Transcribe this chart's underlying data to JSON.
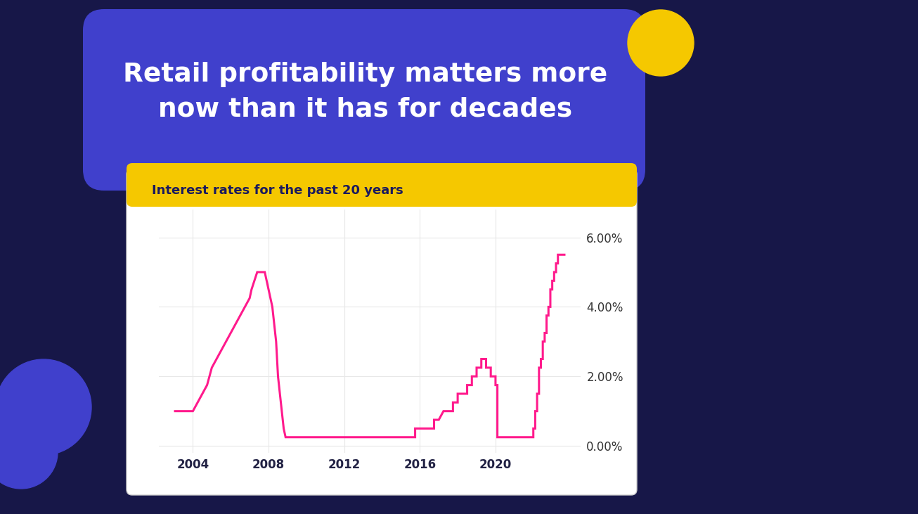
{
  "title_line1": "Retail profitability matters more",
  "title_line2": "now than it has for decades",
  "chart_subtitle": "Interest rates for the past 20 years",
  "background_color": "#171748",
  "title_box_color": "#4040cc",
  "title_text_color": "#ffffff",
  "chart_bg_color": "#ffffff",
  "chart_border_color": "#cccccc",
  "chart_top_bar_color": "#f5c800",
  "line_color": "#ff1a8c",
  "subtitle_color": "#1a1a5e",
  "grid_color": "#e8e8e8",
  "yellow_circle_color": "#f5c800",
  "blue_shape_color": "#4040cc",
  "x_ticks": [
    2004,
    2008,
    2012,
    2016,
    2020
  ],
  "y_ticks": [
    0.0,
    2.0,
    4.0,
    6.0
  ],
  "y_tick_labels": [
    "0.00%",
    "2.00%",
    "4.00%",
    "6.00%"
  ],
  "ylim": [
    -0.2,
    6.8
  ],
  "xlim": [
    2002.2,
    2024.5
  ],
  "interest_rates": [
    [
      2003.0,
      1.0
    ],
    [
      2003.25,
      1.0
    ],
    [
      2003.5,
      1.0
    ],
    [
      2003.75,
      1.0
    ],
    [
      2004.0,
      1.0
    ],
    [
      2004.0,
      1.0
    ],
    [
      2004.25,
      1.25
    ],
    [
      2004.25,
      1.25
    ],
    [
      2004.5,
      1.5
    ],
    [
      2004.5,
      1.5
    ],
    [
      2004.75,
      1.75
    ],
    [
      2004.75,
      1.75
    ],
    [
      2005.0,
      2.25
    ],
    [
      2005.0,
      2.25
    ],
    [
      2005.25,
      2.5
    ],
    [
      2005.25,
      2.5
    ],
    [
      2005.5,
      2.75
    ],
    [
      2005.5,
      2.75
    ],
    [
      2005.75,
      3.0
    ],
    [
      2005.75,
      3.0
    ],
    [
      2006.0,
      3.25
    ],
    [
      2006.0,
      3.25
    ],
    [
      2006.25,
      3.5
    ],
    [
      2006.25,
      3.5
    ],
    [
      2006.5,
      3.75
    ],
    [
      2006.5,
      3.75
    ],
    [
      2006.75,
      4.0
    ],
    [
      2006.75,
      4.0
    ],
    [
      2007.0,
      4.25
    ],
    [
      2007.0,
      4.25
    ],
    [
      2007.1,
      4.5
    ],
    [
      2007.1,
      4.5
    ],
    [
      2007.25,
      4.75
    ],
    [
      2007.25,
      4.75
    ],
    [
      2007.4,
      5.0
    ],
    [
      2007.5,
      5.0
    ],
    [
      2007.6,
      5.0
    ],
    [
      2007.7,
      5.0
    ],
    [
      2007.8,
      5.0
    ],
    [
      2007.8,
      5.0
    ],
    [
      2007.9,
      4.75
    ],
    [
      2007.9,
      4.75
    ],
    [
      2008.0,
      4.5
    ],
    [
      2008.0,
      4.5
    ],
    [
      2008.1,
      4.25
    ],
    [
      2008.1,
      4.25
    ],
    [
      2008.2,
      4.0
    ],
    [
      2008.2,
      4.0
    ],
    [
      2008.3,
      3.5
    ],
    [
      2008.3,
      3.5
    ],
    [
      2008.4,
      3.0
    ],
    [
      2008.4,
      3.0
    ],
    [
      2008.5,
      2.0
    ],
    [
      2008.5,
      2.0
    ],
    [
      2008.6,
      1.5
    ],
    [
      2008.6,
      1.5
    ],
    [
      2008.7,
      1.0
    ],
    [
      2008.7,
      1.0
    ],
    [
      2008.8,
      0.5
    ],
    [
      2008.8,
      0.5
    ],
    [
      2008.9,
      0.25
    ],
    [
      2009.0,
      0.25
    ],
    [
      2009.5,
      0.25
    ],
    [
      2010.0,
      0.25
    ],
    [
      2010.5,
      0.25
    ],
    [
      2011.0,
      0.25
    ],
    [
      2011.5,
      0.25
    ],
    [
      2012.0,
      0.25
    ],
    [
      2012.5,
      0.25
    ],
    [
      2013.0,
      0.25
    ],
    [
      2013.5,
      0.25
    ],
    [
      2014.0,
      0.25
    ],
    [
      2014.5,
      0.25
    ],
    [
      2015.0,
      0.25
    ],
    [
      2015.5,
      0.25
    ],
    [
      2015.75,
      0.25
    ],
    [
      2015.75,
      0.5
    ],
    [
      2016.0,
      0.5
    ],
    [
      2016.25,
      0.5
    ],
    [
      2016.25,
      0.5
    ],
    [
      2016.5,
      0.5
    ],
    [
      2016.75,
      0.5
    ],
    [
      2016.75,
      0.75
    ],
    [
      2017.0,
      0.75
    ],
    [
      2017.0,
      0.75
    ],
    [
      2017.25,
      1.0
    ],
    [
      2017.25,
      1.0
    ],
    [
      2017.5,
      1.0
    ],
    [
      2017.75,
      1.0
    ],
    [
      2017.75,
      1.25
    ],
    [
      2018.0,
      1.25
    ],
    [
      2018.0,
      1.5
    ],
    [
      2018.25,
      1.5
    ],
    [
      2018.5,
      1.5
    ],
    [
      2018.5,
      1.75
    ],
    [
      2018.75,
      1.75
    ],
    [
      2018.75,
      2.0
    ],
    [
      2019.0,
      2.0
    ],
    [
      2019.0,
      2.25
    ],
    [
      2019.25,
      2.25
    ],
    [
      2019.25,
      2.5
    ],
    [
      2019.5,
      2.5
    ],
    [
      2019.5,
      2.25
    ],
    [
      2019.75,
      2.25
    ],
    [
      2019.75,
      2.0
    ],
    [
      2020.0,
      2.0
    ],
    [
      2020.0,
      1.75
    ],
    [
      2020.1,
      1.75
    ],
    [
      2020.1,
      0.25
    ],
    [
      2020.25,
      0.25
    ],
    [
      2020.5,
      0.25
    ],
    [
      2020.75,
      0.25
    ],
    [
      2021.0,
      0.25
    ],
    [
      2021.25,
      0.25
    ],
    [
      2021.5,
      0.25
    ],
    [
      2021.75,
      0.25
    ],
    [
      2022.0,
      0.25
    ],
    [
      2022.0,
      0.5
    ],
    [
      2022.1,
      0.5
    ],
    [
      2022.1,
      1.0
    ],
    [
      2022.2,
      1.0
    ],
    [
      2022.2,
      1.5
    ],
    [
      2022.3,
      1.5
    ],
    [
      2022.3,
      2.25
    ],
    [
      2022.4,
      2.25
    ],
    [
      2022.4,
      2.5
    ],
    [
      2022.5,
      2.5
    ],
    [
      2022.5,
      3.0
    ],
    [
      2022.6,
      3.0
    ],
    [
      2022.6,
      3.25
    ],
    [
      2022.7,
      3.25
    ],
    [
      2022.7,
      3.75
    ],
    [
      2022.8,
      3.75
    ],
    [
      2022.8,
      4.0
    ],
    [
      2022.9,
      4.0
    ],
    [
      2022.9,
      4.5
    ],
    [
      2023.0,
      4.5
    ],
    [
      2023.0,
      4.75
    ],
    [
      2023.1,
      4.75
    ],
    [
      2023.1,
      5.0
    ],
    [
      2023.2,
      5.0
    ],
    [
      2023.2,
      5.25
    ],
    [
      2023.3,
      5.25
    ],
    [
      2023.3,
      5.5
    ],
    [
      2023.5,
      5.5
    ],
    [
      2023.7,
      5.5
    ]
  ]
}
